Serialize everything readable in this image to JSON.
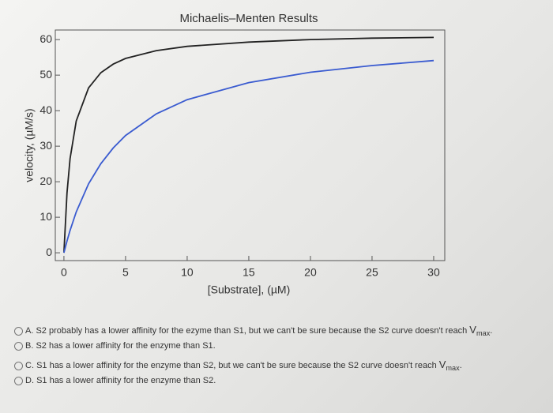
{
  "chart_data": {
    "type": "line",
    "title": "Michaelis–Menten Results",
    "x_label": "[Substrate], (µM)",
    "y_label": "velocity, (µM/s)",
    "x": [
      0,
      0.25,
      0.5,
      1,
      2,
      3,
      4,
      5,
      7.5,
      10,
      15,
      20,
      25,
      30
    ],
    "series": [
      {
        "color": "#222222",
        "values": [
          0,
          16.8,
          26.5,
          37.1,
          46.4,
          50.7,
          53.1,
          54.7,
          56.9,
          58.1,
          59.3,
          60.0,
          60.4,
          60.6
        ]
      },
      {
        "color": "#3a5bd0",
        "values": [
          0,
          3.3,
          6.3,
          11.5,
          19.4,
          25.1,
          29.5,
          33.0,
          39.1,
          43.1,
          47.9,
          50.8,
          52.7,
          54.1
        ]
      }
    ],
    "xlim": [
      -0.7,
      30.9
    ],
    "ylim": [
      -2.2,
      62.7
    ],
    "xticks": [
      0,
      5,
      10,
      15,
      20,
      25,
      30
    ],
    "yticks": [
      0,
      10,
      20,
      30,
      40,
      50,
      60
    ]
  },
  "options": [
    {
      "letter": "A.",
      "text": "S2 probably has a lower affinity for the ezyme than S1, but we can't be sure because the S2 curve doesn't reach ",
      "symbol": "V",
      "sub": "max",
      "end": "."
    },
    {
      "letter": "B.",
      "text": "S2 has a lower affinity for the enzyme than S1."
    },
    {
      "letter": "C.",
      "text": "S1 has a lower affinity for the enzyme than S2, but we can't be sure because the S2 curve doesn't reach ",
      "symbol": "V",
      "sub": "max",
      "end": "."
    },
    {
      "letter": "D.",
      "text": "S1 has a lower affinity for the enzyme than S2."
    }
  ]
}
